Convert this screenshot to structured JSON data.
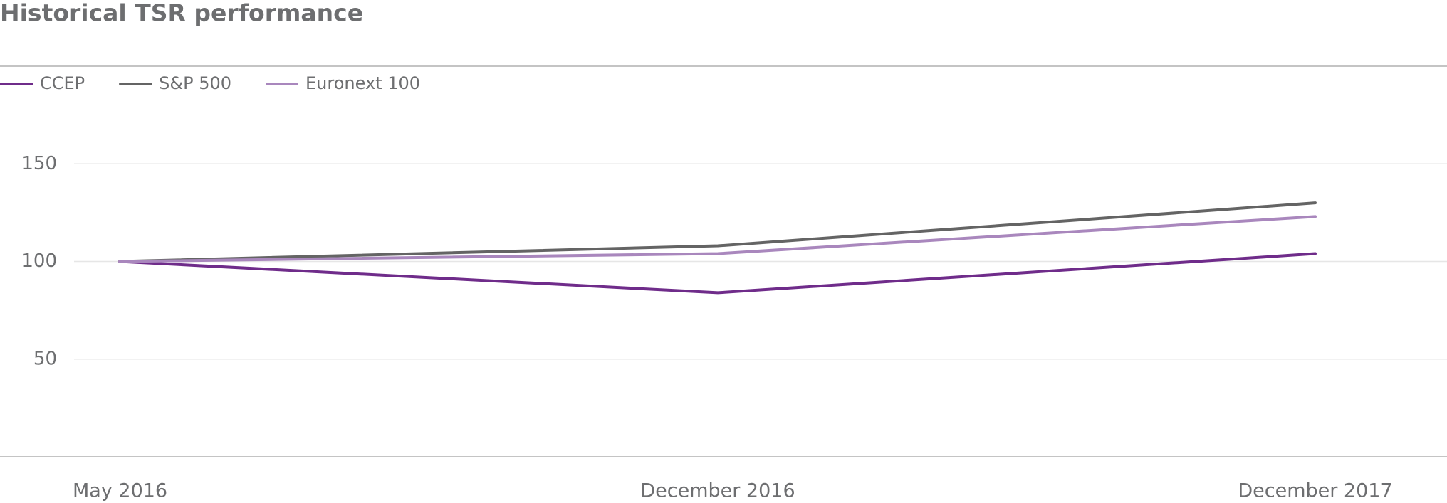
{
  "chart_data": {
    "type": "line",
    "title": "Historical TSR performance",
    "categories": [
      "May 2016",
      "December 2016",
      "December 2017"
    ],
    "series": [
      {
        "name": "CCEP",
        "color": "#6f2c8a",
        "values": [
          100,
          84,
          104
        ]
      },
      {
        "name": "S&P 500",
        "color": "#646464",
        "values": [
          100,
          108,
          130
        ]
      },
      {
        "name": "Euronext 100",
        "color": "#a987bd",
        "values": [
          100,
          104,
          123
        ]
      }
    ],
    "ylim": [
      0,
      200
    ],
    "yticks": [
      50,
      100,
      150
    ],
    "grid": true,
    "legend": "top-left"
  }
}
